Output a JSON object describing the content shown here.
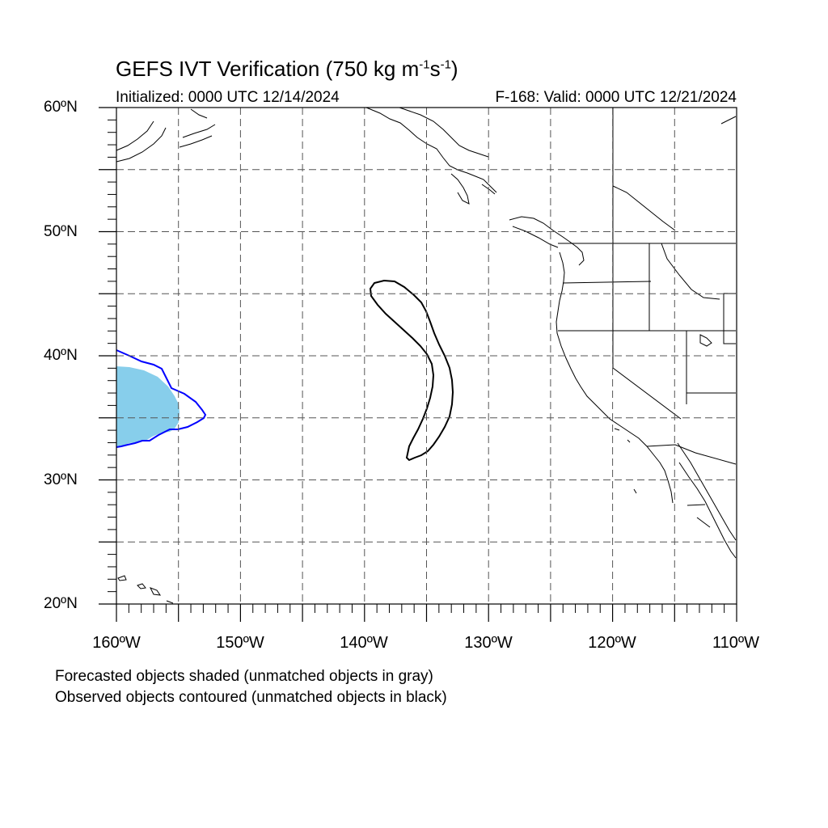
{
  "title": {
    "main": "GEFS IVT Verification (750 kg m",
    "sup1": "-1",
    "mid": "s",
    "sup2": "-1",
    "end": ")"
  },
  "subtitle": {
    "initialized": "Initialized: 0000 UTC 12/14/2024",
    "valid": "F-168: Valid: 0000 UTC 12/21/2024"
  },
  "axes": {
    "lat_labels": [
      "60ºN",
      "50ºN",
      "40ºN",
      "30ºN",
      "20ºN"
    ],
    "lon_labels": [
      "160ºW",
      "150ºW",
      "140ºW",
      "130ºW",
      "120ºW",
      "110ºW"
    ],
    "lat_range": [
      20,
      60
    ],
    "lon_range": [
      -160,
      -110
    ]
  },
  "legend": {
    "line1": "Forecasted objects shaded (unmatched objects in gray)",
    "line2": "Observed objects contoured (unmatched objects in black)"
  },
  "colors": {
    "forecast_fill": "#87ceeb",
    "matched_observed_contour": "#0000ff",
    "unmatched_observed_contour": "#000000",
    "gridline": "#555555"
  }
}
